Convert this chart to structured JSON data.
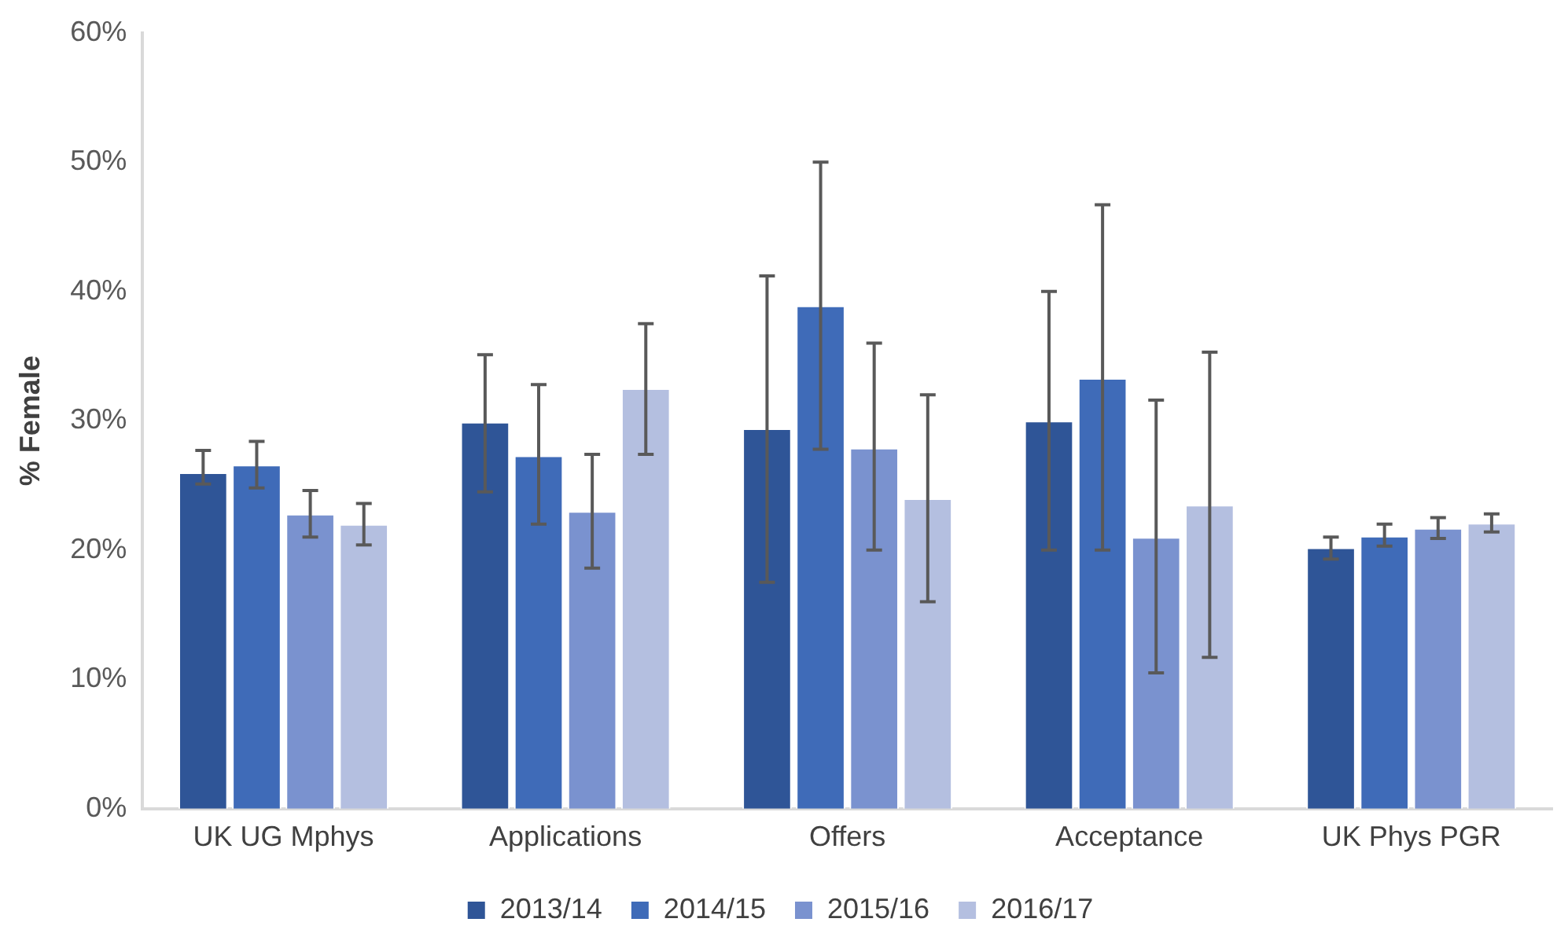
{
  "chart_data": {
    "type": "bar",
    "ylabel": "% Female",
    "categories": [
      "UK UG Mphys",
      "Applications",
      "Offers",
      "Acceptance",
      "UK Phys PGR"
    ],
    "series": [
      {
        "name": "2013/14",
        "color": "#2f5597",
        "values": [
          26.0,
          29.9,
          29.4,
          30.0,
          20.2
        ],
        "errors": [
          [
            25.1,
            27.7
          ],
          [
            24.5,
            35.1
          ],
          [
            17.5,
            41.2
          ],
          [
            20.0,
            40.0
          ],
          [
            19.3,
            21.0
          ]
        ]
      },
      {
        "name": "2014/15",
        "color": "#3f6bb8",
        "values": [
          26.6,
          27.3,
          38.9,
          33.3,
          21.1
        ],
        "errors": [
          [
            24.8,
            28.4
          ],
          [
            22.0,
            32.8
          ],
          [
            27.8,
            50.0
          ],
          [
            20.0,
            46.7
          ],
          [
            20.3,
            22.0
          ]
        ]
      },
      {
        "name": "2015/16",
        "color": "#7a92cf",
        "values": [
          22.8,
          23.0,
          27.9,
          21.0,
          21.7
        ],
        "errors": [
          [
            21.0,
            24.6
          ],
          [
            18.6,
            27.4
          ],
          [
            20.0,
            36.0
          ],
          [
            10.5,
            31.6
          ],
          [
            20.9,
            22.5
          ]
        ]
      },
      {
        "name": "2016/17",
        "color": "#b4bfe0",
        "values": [
          22.0,
          32.5,
          24.0,
          23.5,
          22.1
        ],
        "errors": [
          [
            20.4,
            23.6
          ],
          [
            27.4,
            37.5
          ],
          [
            16.0,
            32.0
          ],
          [
            11.7,
            35.3
          ],
          [
            21.4,
            22.8
          ]
        ]
      }
    ],
    "ylim": [
      0,
      60
    ],
    "yticks": [
      {
        "value": 0,
        "label": "0%"
      },
      {
        "value": 10,
        "label": "10%"
      },
      {
        "value": 20,
        "label": "20%"
      },
      {
        "value": 30,
        "label": "30%"
      },
      {
        "value": 40,
        "label": "40%"
      },
      {
        "value": 50,
        "label": "50%"
      },
      {
        "value": 60,
        "label": "60%"
      }
    ],
    "grid": false,
    "legend": "bottom"
  }
}
